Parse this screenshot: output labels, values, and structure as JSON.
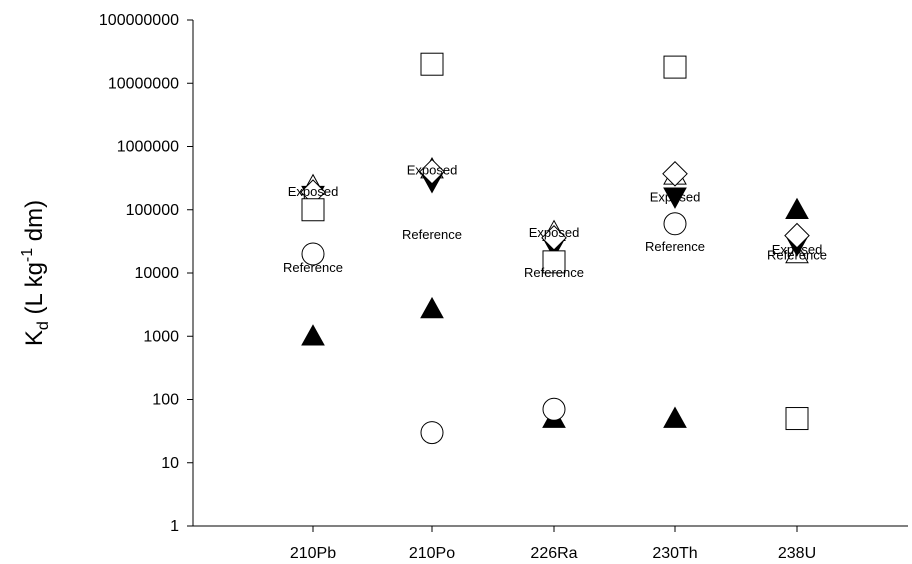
{
  "chart_data": {
    "type": "scatter",
    "title": "",
    "xlabel": "",
    "ylabel": "K_d (L kg^-1 dm)",
    "ylabel_parts": {
      "base": "K",
      "sub": "d",
      "pre": "(L kg",
      "sup": "-1",
      "post": " dm)"
    },
    "yscale": "log",
    "ylim": [
      1,
      100000000
    ],
    "grid": false,
    "legend": "none",
    "categories": [
      "210Pb",
      "210Po",
      "226Ra",
      "230Th",
      "238U"
    ],
    "y_tick_labels": [
      "1",
      "10",
      "100",
      "1000",
      "10000",
      "100000",
      "1000000",
      "10000000",
      "100000000"
    ],
    "series": [
      {
        "marker": "triangle-up-filled",
        "values": [
          1000,
          2700,
          50,
          50,
          100000
        ]
      },
      {
        "marker": "triangle-up-open",
        "values": [
          240000,
          440000,
          45000,
          350000,
          20000
        ]
      },
      {
        "marker": "triangle-down-filled",
        "values": [
          170000,
          280000,
          26000,
          160000,
          28000
        ]
      },
      {
        "marker": "diamond-open",
        "values": [
          190000,
          400000,
          36000,
          370000,
          39000
        ]
      },
      {
        "marker": "square-open",
        "values": [
          100000,
          20000000,
          15000,
          18000000,
          50
        ]
      },
      {
        "marker": "circle-open",
        "values": [
          20000,
          30,
          70,
          60000,
          null
        ]
      }
    ],
    "annotations": [
      {
        "text": "Exposed",
        "category": "210Pb",
        "y": 190000
      },
      {
        "text": "Reference",
        "category": "210Pb",
        "y": 12000
      },
      {
        "text": "Exposed",
        "category": "210Po",
        "y": 420000
      },
      {
        "text": "Reference",
        "category": "210Po",
        "y": 40000
      },
      {
        "text": "Exposed",
        "category": "226Ra",
        "y": 43000
      },
      {
        "text": "Reference",
        "category": "226Ra",
        "y": 10000
      },
      {
        "text": "Exposed",
        "category": "230Th",
        "y": 155000
      },
      {
        "text": "Reference",
        "category": "230Th",
        "y": 26000
      },
      {
        "text": "Exposed",
        "category": "238U",
        "y": 23000
      },
      {
        "text": "Reference",
        "category": "238U",
        "y": 19000
      }
    ]
  }
}
